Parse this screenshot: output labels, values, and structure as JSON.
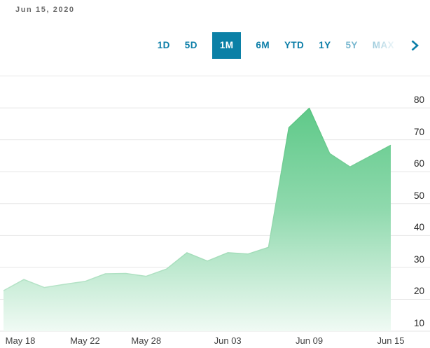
{
  "header": {
    "date_label": "Jun 15, 2020"
  },
  "toolbar": {
    "tabs": [
      {
        "label": "1D",
        "active": false,
        "style": "normal"
      },
      {
        "label": "5D",
        "active": false,
        "style": "normal"
      },
      {
        "label": "1M",
        "active": true,
        "style": "normal"
      },
      {
        "label": "6M",
        "active": false,
        "style": "normal"
      },
      {
        "label": "YTD",
        "active": false,
        "style": "normal"
      },
      {
        "label": "1Y",
        "active": false,
        "style": "normal"
      },
      {
        "label": "5Y",
        "active": false,
        "style": "muted"
      },
      {
        "label": "MAX",
        "active": false,
        "style": "faded"
      }
    ],
    "more_icon": "chevron-right"
  },
  "colors": {
    "accent_teal": "#0b7ea8",
    "active_tab_bg": "#0b80a6",
    "active_tab_text": "#ffffff",
    "gridline": "#e6e6e6",
    "area_top": "#4fc47d",
    "area_mid": "#8fd9ad",
    "area_bottom": "#f0faf4",
    "line_top": "#45bd72",
    "line_bottom": "#cdebd9",
    "y_axis_text": "#272727",
    "x_axis_text": "#414141",
    "date_text": "#6b6b6b"
  },
  "chart_data": {
    "type": "area",
    "title": "",
    "xlabel": "",
    "ylabel": "",
    "x": [
      "May 18",
      "May 19",
      "May 20",
      "May 21",
      "May 22",
      "May 26",
      "May 27",
      "May 28",
      "May 29",
      "Jun 01",
      "Jun 02",
      "Jun 03",
      "Jun 04",
      "Jun 05",
      "Jun 08",
      "Jun 09",
      "Jun 10",
      "Jun 11",
      "Jun 12",
      "Jun 15"
    ],
    "values": [
      22.7,
      26.2,
      23.7,
      24.7,
      25.6,
      28.0,
      28.1,
      27.2,
      29.5,
      34.6,
      32.0,
      34.6,
      34.2,
      36.3,
      73.8,
      79.9,
      65.7,
      61.5,
      64.9,
      68.3
    ],
    "x_tick_labels": [
      "May 18",
      "May 22",
      "May 28",
      "Jun 03",
      "Jun 09",
      "Jun 15"
    ],
    "x_tick_indices": [
      0,
      4,
      7,
      11,
      15,
      19
    ],
    "y_ticks": [
      10,
      20,
      30,
      40,
      50,
      60,
      70,
      80
    ],
    "ylim": [
      10,
      90
    ],
    "grid": true,
    "legend": false,
    "y_axis_side": "right",
    "last_date": "Jun 15, 2020"
  }
}
